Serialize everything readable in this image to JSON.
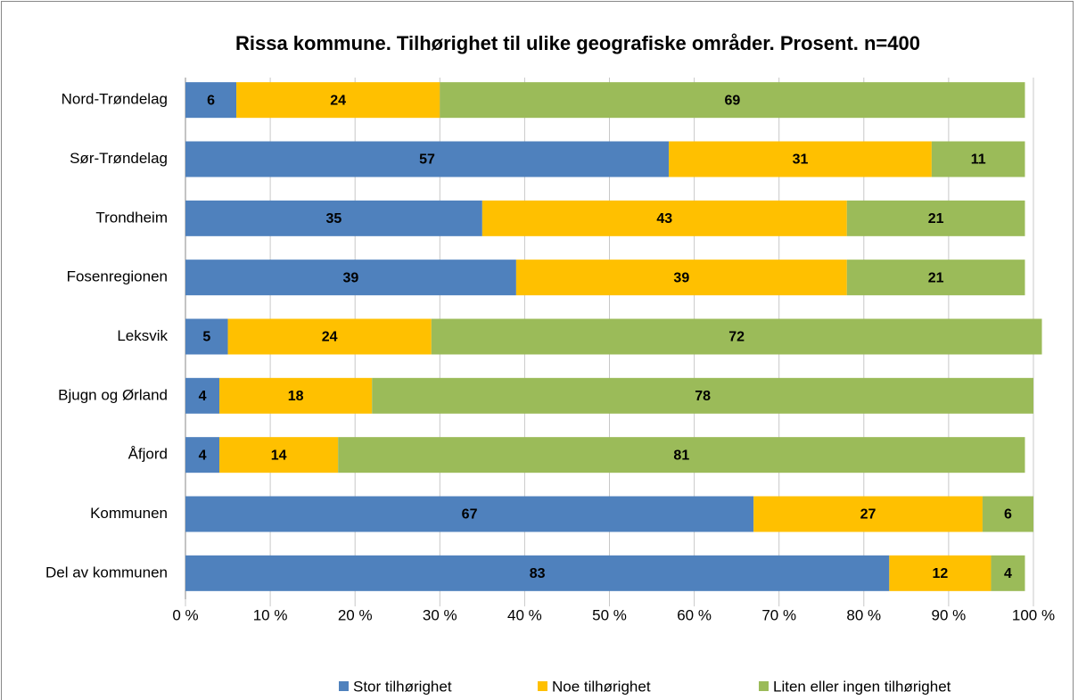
{
  "chart_data": {
    "type": "bar",
    "orientation": "horizontal",
    "stacked": true,
    "title": "Rissa kommune. Tilhørighet til ulike geografiske områder. Prosent. n=400",
    "categories": [
      "Nord-Trøndelag",
      "Sør-Trøndelag",
      "Trondheim",
      "Fosenregionen",
      "Leksvik",
      "Bjugn og Ørland",
      "Åfjord",
      "Kommunen",
      "Del av kommunen"
    ],
    "series": [
      {
        "name": "Stor tilhørighet",
        "color": "#4f81bd",
        "values": [
          6,
          57,
          35,
          39,
          5,
          4,
          4,
          67,
          83
        ]
      },
      {
        "name": "Noe tilhørighet",
        "color": "#ffc000",
        "values": [
          24,
          31,
          43,
          39,
          24,
          18,
          14,
          27,
          12
        ]
      },
      {
        "name": "Liten eller ingen tilhørighet",
        "color": "#9bbb59",
        "values": [
          69,
          11,
          21,
          21,
          72,
          78,
          81,
          6,
          4
        ]
      }
    ],
    "xlim": [
      0,
      100
    ],
    "xticks": [
      {
        "value": 0,
        "label": "0 %"
      },
      {
        "value": 10,
        "label": "10 %"
      },
      {
        "value": 20,
        "label": "20 %"
      },
      {
        "value": 30,
        "label": "30 %"
      },
      {
        "value": 40,
        "label": "40 %"
      },
      {
        "value": 50,
        "label": "50 %"
      },
      {
        "value": 60,
        "label": "60 %"
      },
      {
        "value": 70,
        "label": "70 %"
      },
      {
        "value": 80,
        "label": "80 %"
      },
      {
        "value": 90,
        "label": "90 %"
      },
      {
        "value": 100,
        "label": "100 %"
      }
    ],
    "grid": true,
    "legend": "bottom"
  }
}
